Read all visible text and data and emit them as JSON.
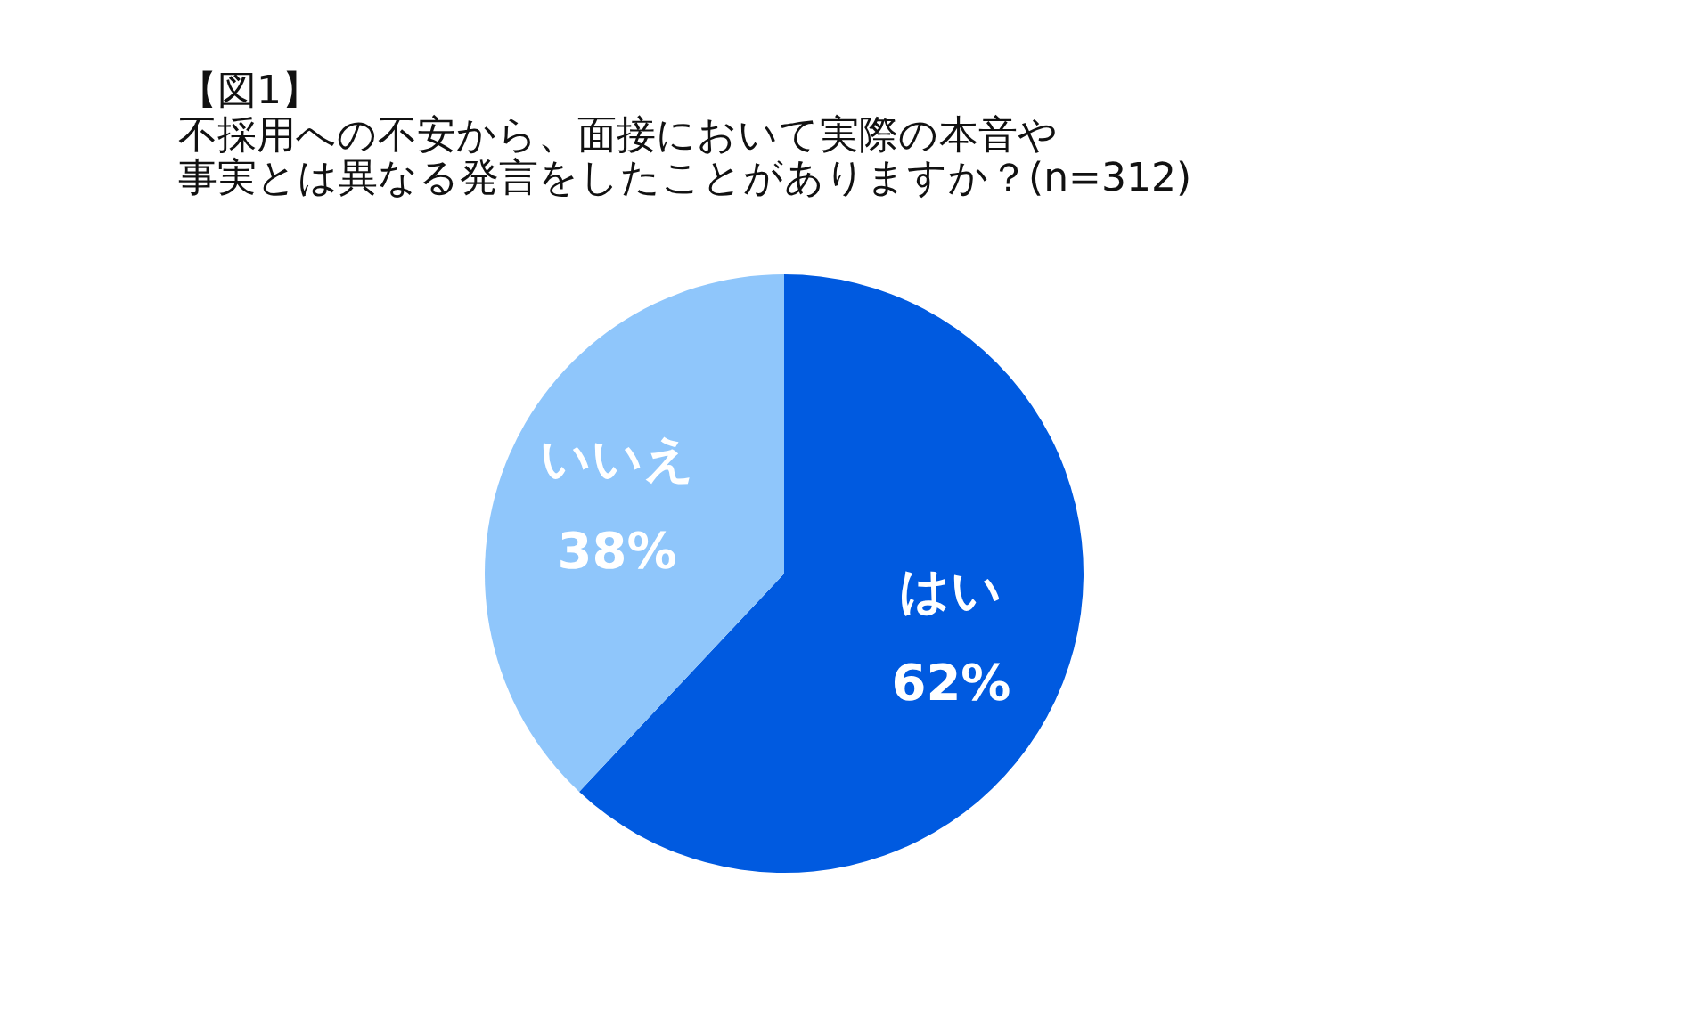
{
  "chart_data": {
    "type": "pie",
    "title": "【図1】",
    "subtitle": [
      "不採用への不安から、面接において実際の本音や",
      "事実とは異なる発言をしたことがありますか？(n=312)"
    ],
    "categories": [
      "はい",
      "いいえ"
    ],
    "values": [
      62,
      38
    ],
    "value_labels": [
      "62%",
      "38%"
    ],
    "colors": [
      "#005ae0",
      "#8fc6fb"
    ],
    "legend": false
  }
}
